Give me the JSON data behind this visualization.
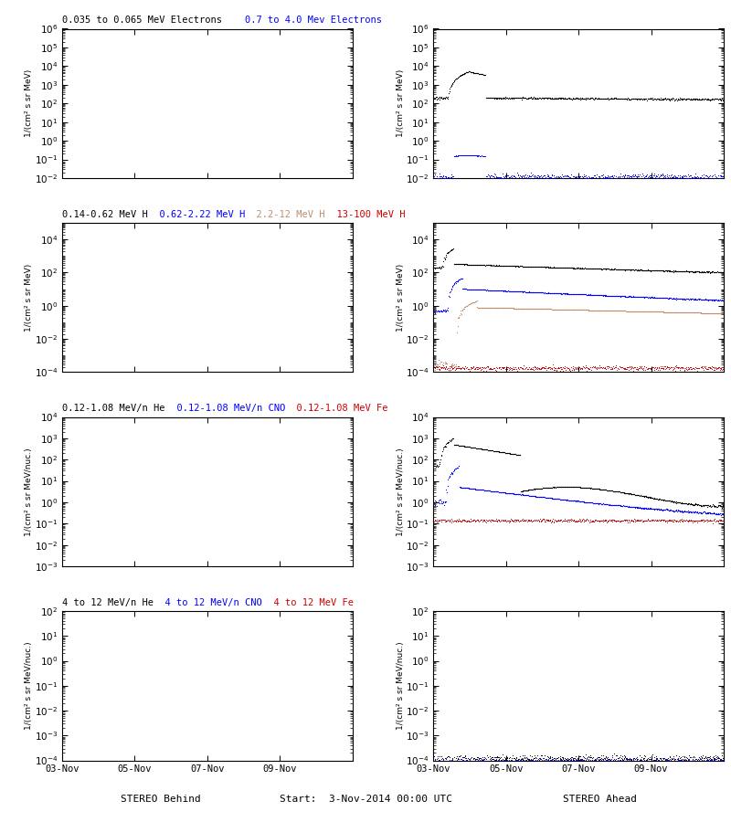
{
  "background_color": "#ffffff",
  "date_ticks": [
    "03-Nov",
    "05-Nov",
    "07-Nov",
    "09-Nov"
  ],
  "row_titles": [
    [
      {
        "text": "0.035 to 0.065 MeV Electrons",
        "color": "#000000"
      },
      {
        "text": "    0.7 to 4.0 Mev Electrons",
        "color": "#0000ff"
      }
    ],
    [
      {
        "text": "0.14-0.62 MeV H",
        "color": "#000000"
      },
      {
        "text": "  0.62-2.22 MeV H",
        "color": "#0000ff"
      },
      {
        "text": "  2.2-12 MeV H",
        "color": "#bc8f6f"
      },
      {
        "text": "  13-100 MeV H",
        "color": "#cc0000"
      }
    ],
    [
      {
        "text": "0.12-1.08 MeV/n He",
        "color": "#000000"
      },
      {
        "text": "  0.12-1.08 MeV/n CNO",
        "color": "#0000ff"
      },
      {
        "text": "  0.12-1.08 MeV Fe",
        "color": "#cc0000"
      }
    ],
    [
      {
        "text": "4 to 12 MeV/n He",
        "color": "#000000"
      },
      {
        "text": "  4 to 12 MeV/n CNO",
        "color": "#0000ff"
      },
      {
        "text": "  4 to 12 MeV Fe",
        "color": "#cc0000"
      }
    ]
  ],
  "panels_left": [
    {
      "ylim": [
        0.01,
        1000000.0
      ],
      "ylabel": "1/(cm² s sr MeV)"
    },
    {
      "ylim": [
        0.0001,
        100000.0
      ],
      "ylabel": "1/(cm² s sr MeV)"
    },
    {
      "ylim": [
        0.001,
        10000.0
      ],
      "ylabel": "1/(cm² s sr MeV/nuc.)"
    },
    {
      "ylim": [
        0.0001,
        100.0
      ],
      "ylabel": "1/(cm² s sr MeV/nuc.)"
    }
  ],
  "panels_right": [
    {
      "ylim": [
        0.01,
        1000000.0
      ],
      "ylabel": "1/(cm² s sr MeV)"
    },
    {
      "ylim": [
        0.0001,
        100000.0
      ],
      "ylabel": "1/(cm² s sr MeV)"
    },
    {
      "ylim": [
        0.001,
        10000.0
      ],
      "ylabel": "1/(cm² s sr MeV/nuc.)"
    },
    {
      "ylim": [
        0.0001,
        100.0
      ],
      "ylabel": "1/(cm² s sr MeV/nuc.)"
    }
  ]
}
